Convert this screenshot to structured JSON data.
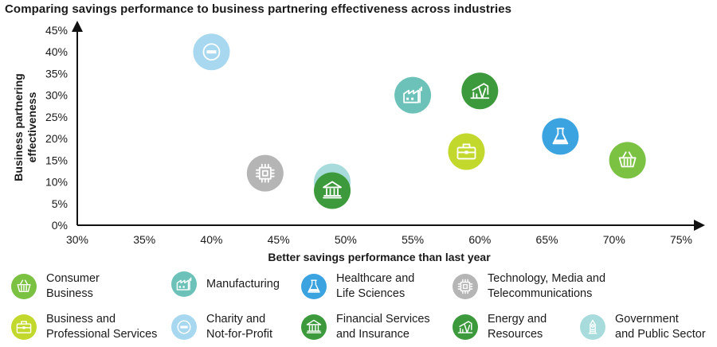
{
  "chart_data": {
    "type": "scatter",
    "title": "Comparing savings performance to business partnering effectiveness across industries",
    "xlabel": "Better savings performance than last year",
    "ylabel": "Business partnering effectiveness",
    "xlim": [
      30,
      75
    ],
    "ylim": [
      0,
      45
    ],
    "x_ticks": [
      "30%",
      "35%",
      "40%",
      "45%",
      "50%",
      "55%",
      "60%",
      "65%",
      "70%",
      "75%"
    ],
    "y_ticks": [
      "0%",
      "5%",
      "10%",
      "15%",
      "20%",
      "25%",
      "30%",
      "35%",
      "40%",
      "45%"
    ],
    "grid": false,
    "legend_position": "bottom",
    "series": [
      {
        "name": "Charity and Not-for-Profit",
        "icon": "minus-circle-icon",
        "color": "#a8d8f0",
        "x": 40,
        "y": 40
      },
      {
        "name": "Manufacturing",
        "icon": "factory-icon",
        "color": "#6cc2b8",
        "x": 55,
        "y": 30
      },
      {
        "name": "Energy and Resources",
        "icon": "oil-pump-icon",
        "color": "#3c9a3c",
        "x": 60,
        "y": 31
      },
      {
        "name": "Healthcare and Life Sciences",
        "icon": "flask-icon",
        "color": "#3aa3e0",
        "x": 66,
        "y": 20.5
      },
      {
        "name": "Business and Professional Services",
        "icon": "briefcase-icon",
        "color": "#c3d82c",
        "x": 59,
        "y": 17
      },
      {
        "name": "Consumer Business",
        "icon": "basket-icon",
        "color": "#7bc142",
        "x": 71,
        "y": 15
      },
      {
        "name": "Technology, Media and Telecommunications",
        "icon": "chip-icon",
        "color": "#b5b5b5",
        "x": 44,
        "y": 12
      },
      {
        "name": "Government and Public Sector",
        "icon": "tower-icon",
        "color": "#a8dcdc",
        "x": 49,
        "y": 10
      },
      {
        "name": "Financial Services and Insurance",
        "icon": "bank-icon",
        "color": "#3c9a3c",
        "x": 49,
        "y": 8
      }
    ]
  },
  "legend": [
    {
      "label": "Consumer\nBusiness",
      "icon": "basket-icon",
      "color": "#7bc142"
    },
    {
      "label": "Manufacturing",
      "icon": "factory-icon",
      "color": "#6cc2b8"
    },
    {
      "label": "Healthcare and\nLife Sciences",
      "icon": "flask-icon",
      "color": "#3aa3e0"
    },
    {
      "label": "Technology, Media and\nTelecommunications",
      "icon": "chip-icon",
      "color": "#b5b5b5"
    },
    {
      "label": "Business and\nProfessional Services",
      "icon": "briefcase-icon",
      "color": "#c3d82c"
    },
    {
      "label": "Charity and\nNot-for-Profit",
      "icon": "minus-circle-icon",
      "color": "#a8d8f0"
    },
    {
      "label": "Financial Services\nand Insurance",
      "icon": "bank-icon",
      "color": "#3c9a3c"
    },
    {
      "label": "Energy and\nResources",
      "icon": "oil-pump-icon",
      "color": "#3c9a3c"
    },
    {
      "label": "Government\nand Public Sector",
      "icon": "tower-icon",
      "color": "#a8dcdc"
    }
  ]
}
